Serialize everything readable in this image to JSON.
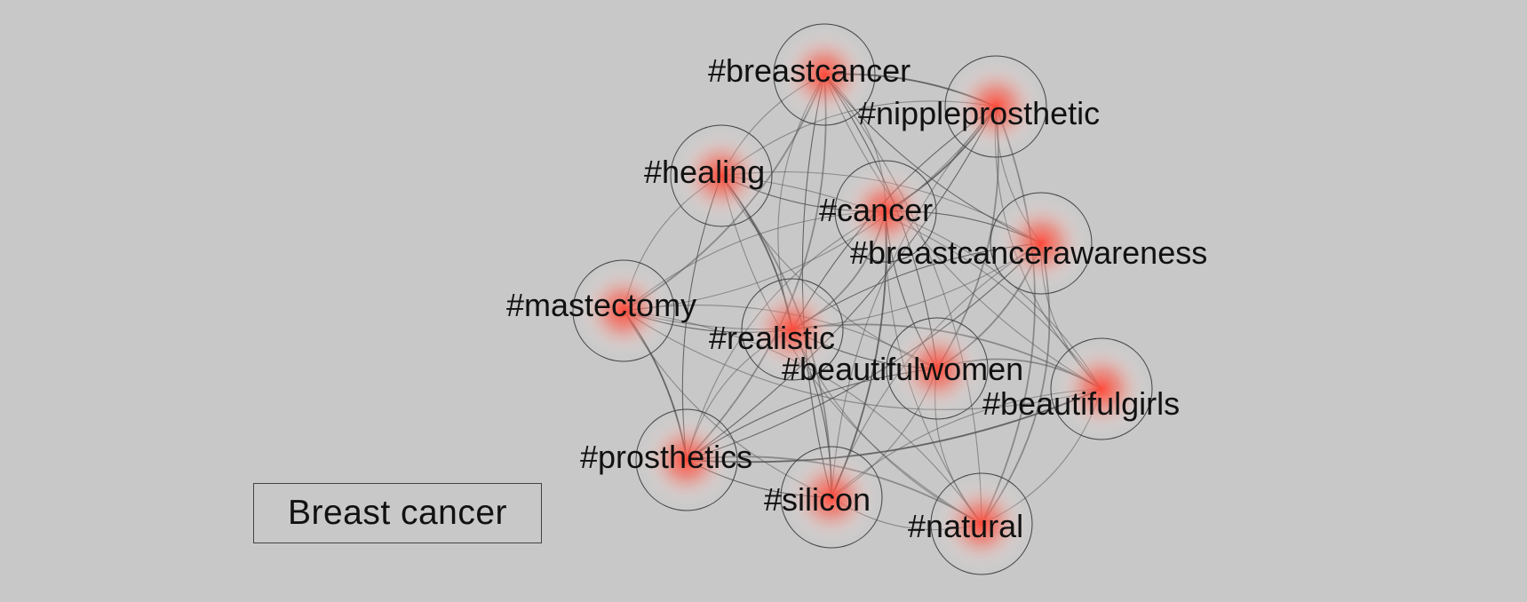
{
  "legend": {
    "label": "Breast cancer"
  },
  "colors": {
    "background": "#c8c8c8",
    "node_glow": "#ff4a3a",
    "edge": "#555555"
  },
  "nodes": [
    {
      "id": "breastcancer",
      "label": "#breastcancer"
    },
    {
      "id": "nippleprosthetic",
      "label": "#nippleprosthetic"
    },
    {
      "id": "healing",
      "label": "#healing"
    },
    {
      "id": "cancer",
      "label": "#cancer"
    },
    {
      "id": "breastcancerawareness",
      "label": "#breastcancerawareness"
    },
    {
      "id": "mastectomy",
      "label": "#mastectomy"
    },
    {
      "id": "realistic",
      "label": "#realistic"
    },
    {
      "id": "beautifulwomen",
      "label": "#beautifulwomen"
    },
    {
      "id": "beautifulgirls",
      "label": "#beautifulgirls"
    },
    {
      "id": "prosthetics",
      "label": "#prosthetics"
    },
    {
      "id": "silicon",
      "label": "#silicon"
    },
    {
      "id": "natural",
      "label": "#natural"
    }
  ]
}
